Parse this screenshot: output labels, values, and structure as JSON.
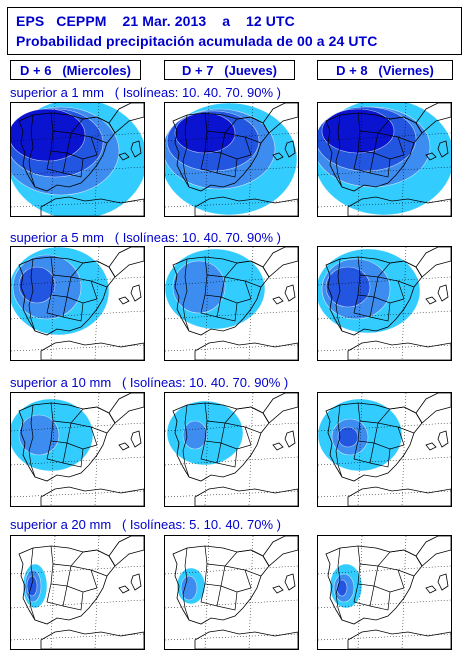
{
  "header": {
    "line1": "EPS   CEPPM    21 Mar. 2013    a    12 UTC",
    "line2": "Probabilidad precipitación acumulada de 00 a 24 UTC"
  },
  "days": [
    {
      "label": "D + 6   (Miercoles)"
    },
    {
      "label": "D + 7   (Jueves)"
    },
    {
      "label": "D + 8   (Viernes)"
    }
  ],
  "rows": [
    {
      "caption": "superior a 1 mm   ( Isolíneas: 10. 40. 70. 90% )",
      "threshold_mm": 1
    },
    {
      "caption": "superior a 5 mm   ( Isolíneas: 10. 40. 70. 90% )",
      "threshold_mm": 5
    },
    {
      "caption": "superior a 10 mm   ( Isolíneas: 10. 40. 70. 90% )",
      "threshold_mm": 10
    },
    {
      "caption": "superior a 20 mm   ( Isolíneas: 5. 10. 40. 70% )",
      "threshold_mm": 20
    }
  ],
  "colors": {
    "text": "#0000cc",
    "prob_low": "#33ccff",
    "prob_mid": "#3d8cf0",
    "prob_high": "#2255e0",
    "prob_max": "#0a14d0",
    "land_line": "#000000",
    "background": "#ffffff"
  }
}
